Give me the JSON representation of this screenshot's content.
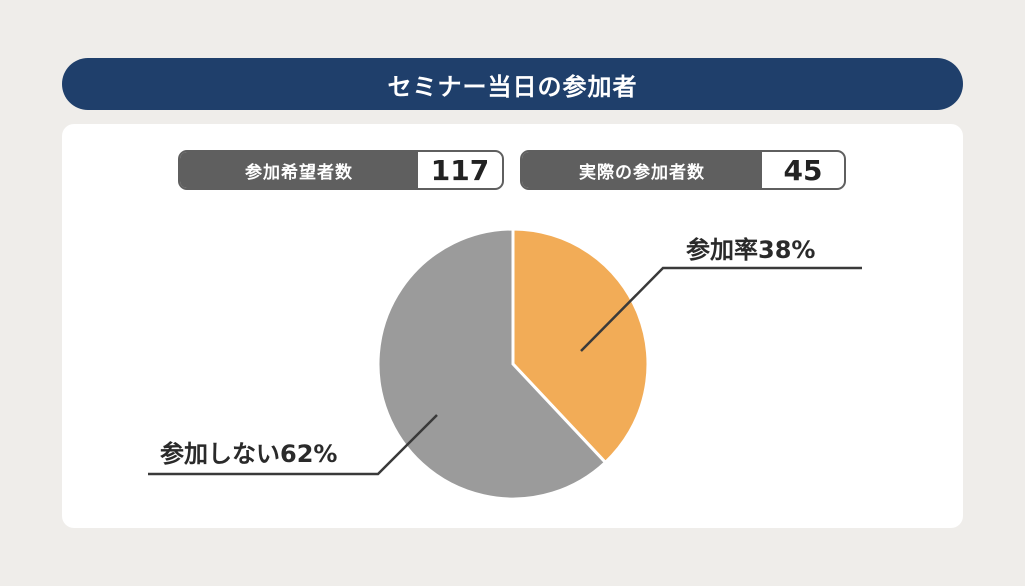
{
  "title": "セミナー当日の参加者",
  "stats": [
    {
      "label": "参加希望者数",
      "value": "117"
    },
    {
      "label": "実際の参加者数",
      "value": "45"
    }
  ],
  "colors": {
    "title_bg": "#1f3f6b",
    "attend": "#f2ac57",
    "absent": "#9b9b9b",
    "stat_label_bg": "#5f5f5f"
  },
  "chart_data": {
    "type": "pie",
    "slices": [
      {
        "label": "参加率38%",
        "value": 38,
        "color": "#f2ac57"
      },
      {
        "label": "参加しない62%",
        "value": 62,
        "color": "#9b9b9b"
      }
    ],
    "start": "12 o'clock",
    "direction": "clockwise"
  }
}
